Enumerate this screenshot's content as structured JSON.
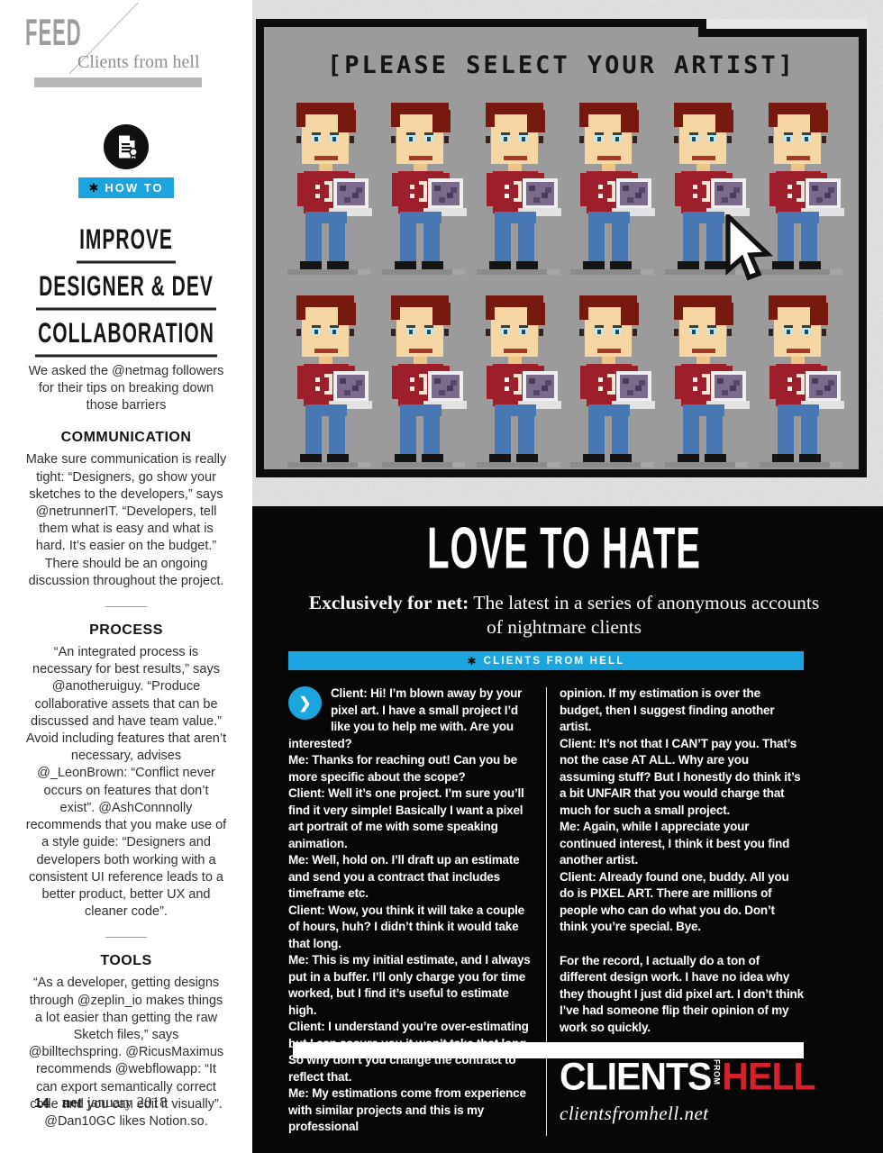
{
  "colors": {
    "accent_cyan": "#1ba4de",
    "logo_red": "#d6202b"
  },
  "page": {
    "footer_page_number": "14",
    "footer_brand": "net",
    "footer_date": "january 2018"
  },
  "feed": {
    "kicker": "FEED",
    "subtitle": "Clients from hell"
  },
  "howto": {
    "badge_star": "✱",
    "badge_label": "HOW TO",
    "icon": "document-certificate-icon",
    "title_lines": [
      "IMPROVE",
      "DESIGNER & DEV",
      "COLLABORATION"
    ],
    "intro": "We asked the @netmag followers for their tips on breaking down those barriers",
    "sections": [
      {
        "heading": "COMMUNICATION",
        "body": "Make sure communication is really tight: “Designers, go show your sketches to the developers,” says @netrunnerIT. “Developers, tell them what is easy and what is hard. It’s easier on the budget.” There should be an ongoing discussion throughout the project."
      },
      {
        "heading": "PROCESS",
        "body": "“An integrated process is necessary for best results,” says @anotheruiguy. “Produce collaborative assets that can be discussed and have team value.” Avoid including features that aren’t necessary, advises @_LeonBrown: “Conflict never occurs on features that don’t exist”. @AshConnnolly recommends that you make use of a style guide: “Designers and developers both working with a consistent UI reference leads to a better product, better UX and cleaner code”."
      },
      {
        "heading": "TOOLS",
        "body": "“As a developer, getting designs through @zeplin_io makes things a lot easier than getting the raw Sketch files,” says @billtechspring. @RicusMaximus recommends @webflowapp: “It can export semantically correct code and you can edit it visually”. @Dan10GC likes Notion.so."
      }
    ]
  },
  "artwork": {
    "title": "[PLEASE SELECT YOUR ARTIST]",
    "rows": 2,
    "cols": 6,
    "cursor": "pixel-arrow-cursor"
  },
  "feature": {
    "title": "LOVE TO HATE",
    "subtitle_bold": "Exclusively for net:",
    "subtitle_rest": " The latest in a series of anonymous accounts of nightmare clients",
    "badge_star": "✱",
    "badge_label": "CLIENTS FROM HELL",
    "chat_icon_glyph": "❯",
    "column1": [
      "Client:  Hi! I’m blown away by your pixel art. I have a small project I’d like you to help me with. Are you interested?",
      "Me: Thanks for reaching out! Can you be more specific about the scope?",
      "Client: Well it’s one project. I’m sure you’ll find it very simple! Basically I want a pixel art portrait of me with some speaking animation.",
      "Me: Well, hold on. I’ll draft up an estimate and send you a contract that includes timeframe etc.",
      "Client: Wow, you think it will take a couple of hours, huh? I didn’t think it would take that long.",
      "Me: This is my initial estimate, and I always put in a buffer. I’ll only charge you for time worked, but I find it’s useful to estimate high.",
      "Client: I understand you’re over-estimating but I can assure you it won’t take that long. So why don’t you change the contract to reflect that.",
      "Me: My estimations come from experience with similar projects and this is my professional"
    ],
    "column2": [
      "opinion. If my estimation is over the budget, then I suggest finding another artist.",
      "Client: It’s not that I CAN’T pay you. That’s not the case AT ALL. Why are you assuming stuff? But I honestly do think it’s a bit UNFAIR that you would charge that much for such a small project.",
      "Me: Again, while I appreciate your continued interest, I think it best you find another artist.",
      "Client: Already found one, buddy. All you do is PIXEL ART. There are millions of people who can do what you do. Don’t think you’re special. Bye."
    ],
    "column2_final": "For the record, I actually do a ton of different design work. I have no idea why they thought I just did pixel art. I don’t think I’ve had someone flip their opinion of my work so quickly.",
    "logo": {
      "clients": "CLIENTS",
      "from": "FROM",
      "hell": "HELL",
      "site": "clientsfromhell.net"
    }
  }
}
